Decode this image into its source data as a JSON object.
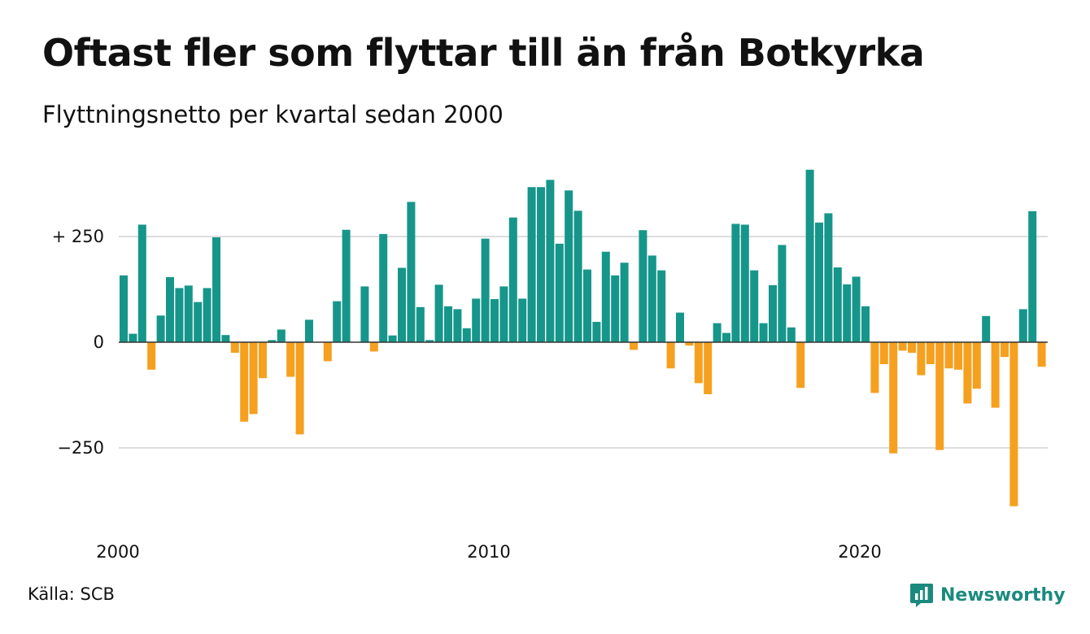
{
  "chart_data": {
    "type": "bar",
    "title": "Oftast fler som flyttar till än från Botkyrka",
    "subtitle": "Flyttningsnetto per kvartal sedan 2000",
    "x_start": "2000-Q1",
    "frequency": "quarterly",
    "values": [
      158,
      20,
      278,
      -65,
      63,
      154,
      128,
      134,
      95,
      128,
      248,
      17,
      -25,
      -188,
      -170,
      -85,
      5,
      30,
      -82,
      -218,
      53,
      0,
      -45,
      97,
      266,
      0,
      132,
      -22,
      256,
      16,
      176,
      332,
      83,
      5,
      136,
      85,
      78,
      33,
      103,
      245,
      102,
      132,
      295,
      103,
      367,
      367,
      384,
      233,
      359,
      311,
      172,
      48,
      214,
      158,
      188,
      -18,
      265,
      205,
      170,
      -62,
      70,
      -8,
      -97,
      -123,
      45,
      22,
      280,
      278,
      170,
      45,
      135,
      230,
      35,
      -108,
      408,
      283,
      305,
      177,
      137,
      155,
      85,
      -120,
      -52,
      -263,
      -20,
      -25,
      -78,
      -52,
      -255,
      -62,
      -65,
      -145,
      -110,
      62,
      -155,
      -35,
      -388,
      78,
      310,
      -58
    ],
    "y_ticks": [
      250,
      0,
      -250
    ],
    "y_tick_labels": [
      "+ 250",
      "0",
      "−250"
    ],
    "ylim": [
      -400,
      410
    ],
    "x_tick_labels": [
      "2000",
      "2010",
      "2020"
    ],
    "grid": true,
    "legend": "none",
    "colors": {
      "positive": "#16968a",
      "negative": "#f6a01f",
      "grid": "#dddddd",
      "zero_line": "#333333"
    }
  },
  "source": "Källa: SCB",
  "brand": {
    "name": "Newsworthy",
    "icon": "newsworthy-logo-icon",
    "color": "#1b8a7e"
  }
}
